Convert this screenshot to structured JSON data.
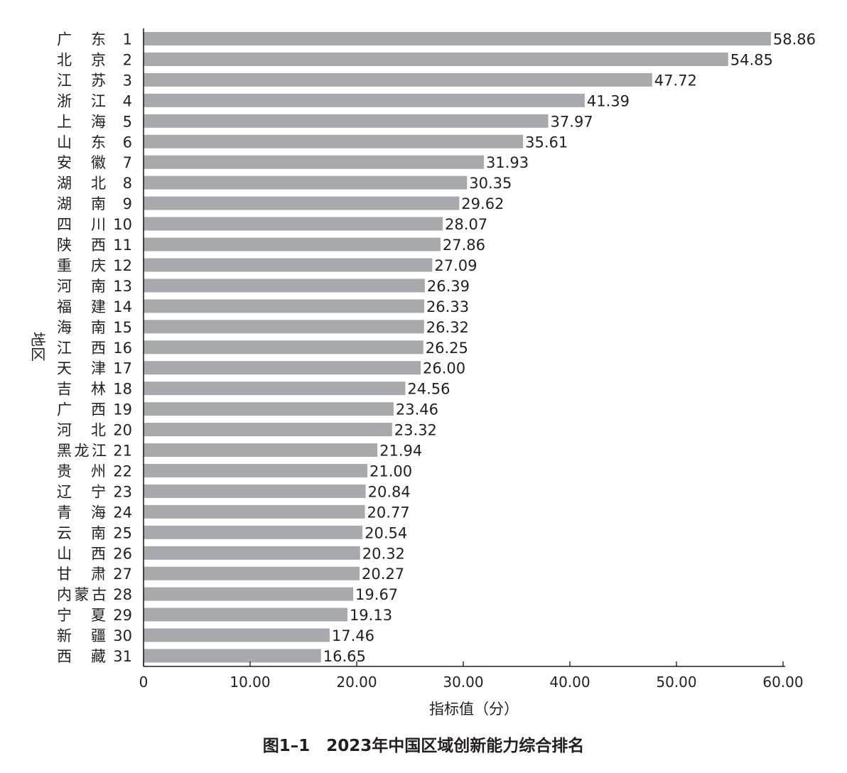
{
  "figure_caption": "图1–1　2023年中国区域创新能力综合排名",
  "chart_data": {
    "type": "bar",
    "orientation": "horizontal",
    "xlabel": "指标值（分）",
    "ylabel": "地区",
    "xlim": [
      0,
      60
    ],
    "xticks": [
      "0",
      "10.00",
      "20.00",
      "30.00",
      "40.00",
      "50.00",
      "60.00"
    ],
    "grid": false,
    "bar_color": "#a7a9ac",
    "categories": [
      {
        "name": [
          "广",
          "东"
        ],
        "rank": "1"
      },
      {
        "name": [
          "北",
          "京"
        ],
        "rank": "2"
      },
      {
        "name": [
          "江",
          "苏"
        ],
        "rank": "3"
      },
      {
        "name": [
          "浙",
          "江"
        ],
        "rank": "4"
      },
      {
        "name": [
          "上",
          "海"
        ],
        "rank": "5"
      },
      {
        "name": [
          "山",
          "东"
        ],
        "rank": "6"
      },
      {
        "name": [
          "安",
          "徽"
        ],
        "rank": "7"
      },
      {
        "name": [
          "湖",
          "北"
        ],
        "rank": "8"
      },
      {
        "name": [
          "湖",
          "南"
        ],
        "rank": "9"
      },
      {
        "name": [
          "四",
          "川"
        ],
        "rank": "10"
      },
      {
        "name": [
          "陕",
          "西"
        ],
        "rank": "11"
      },
      {
        "name": [
          "重",
          "庆"
        ],
        "rank": "12"
      },
      {
        "name": [
          "河",
          "南"
        ],
        "rank": "13"
      },
      {
        "name": [
          "福",
          "建"
        ],
        "rank": "14"
      },
      {
        "name": [
          "海",
          "南"
        ],
        "rank": "15"
      },
      {
        "name": [
          "江",
          "西"
        ],
        "rank": "16"
      },
      {
        "name": [
          "天",
          "津"
        ],
        "rank": "17"
      },
      {
        "name": [
          "吉",
          "林"
        ],
        "rank": "18"
      },
      {
        "name": [
          "广",
          "西"
        ],
        "rank": "19"
      },
      {
        "name": [
          "河",
          "北"
        ],
        "rank": "20"
      },
      {
        "name": [
          "黑龙江"
        ],
        "rank": "21"
      },
      {
        "name": [
          "贵",
          "州"
        ],
        "rank": "22"
      },
      {
        "name": [
          "辽",
          "宁"
        ],
        "rank": "23"
      },
      {
        "name": [
          "青",
          "海"
        ],
        "rank": "24"
      },
      {
        "name": [
          "云",
          "南"
        ],
        "rank": "25"
      },
      {
        "name": [
          "山",
          "西"
        ],
        "rank": "26"
      },
      {
        "name": [
          "甘",
          "肃"
        ],
        "rank": "27"
      },
      {
        "name": [
          "内蒙古"
        ],
        "rank": "28"
      },
      {
        "name": [
          "宁",
          "夏"
        ],
        "rank": "29"
      },
      {
        "name": [
          "新",
          "疆"
        ],
        "rank": "30"
      },
      {
        "name": [
          "西",
          "藏"
        ],
        "rank": "31"
      }
    ],
    "values": [
      58.86,
      54.85,
      47.72,
      41.39,
      37.97,
      35.61,
      31.93,
      30.35,
      29.62,
      28.07,
      27.86,
      27.09,
      26.39,
      26.33,
      26.32,
      26.25,
      26.0,
      24.56,
      23.46,
      23.32,
      21.94,
      21.0,
      20.84,
      20.77,
      20.54,
      20.32,
      20.27,
      19.67,
      19.13,
      17.46,
      16.65
    ],
    "value_labels": [
      "58.86",
      "54.85",
      "47.72",
      "41.39",
      "37.97",
      "35.61",
      "31.93",
      "30.35",
      "29.62",
      "28.07",
      "27.86",
      "27.09",
      "26.39",
      "26.33",
      "26.32",
      "26.25",
      "26.00",
      "24.56",
      "23.46",
      "23.32",
      "21.94",
      "21.00",
      "20.84",
      "20.77",
      "20.54",
      "20.32",
      "20.27",
      "19.67",
      "19.13",
      "17.46",
      "16.65"
    ]
  }
}
